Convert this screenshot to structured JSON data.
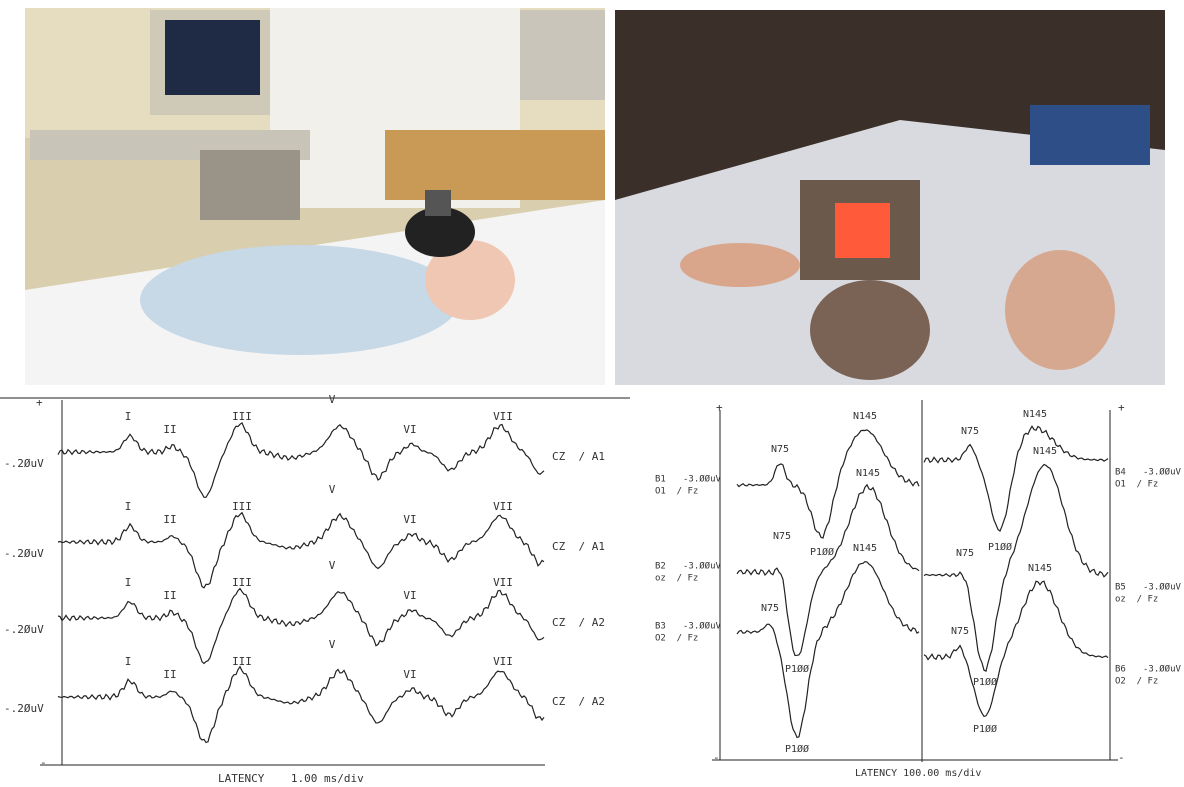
{
  "abr_plot": {
    "plus": "+",
    "minus": "-",
    "footer": "LATENCY    1.00 ms/div",
    "traces": [
      {
        "amplitude": "-.2ØuV",
        "channel": "CZ  / A1",
        "peaks": [
          "I",
          "II",
          "III",
          "V",
          "VI",
          "VII"
        ]
      },
      {
        "amplitude": "-.2ØuV",
        "channel": "CZ  / A1",
        "peaks": [
          "I",
          "II",
          "III",
          "V",
          "VI",
          "VII"
        ]
      },
      {
        "amplitude": "-.2ØuV",
        "channel": "CZ  / A2",
        "peaks": [
          "I",
          "II",
          "III",
          "V",
          "VI",
          "VII"
        ]
      },
      {
        "amplitude": "-.2ØuV",
        "channel": "CZ  / A2",
        "peaks": [
          "I",
          "II",
          "III",
          "V",
          "VI",
          "VII"
        ]
      }
    ]
  },
  "vep_plot": {
    "plus": "+",
    "minus": "-",
    "footer": "LATENCY 100.00 ms/div",
    "traces": [
      {
        "id": "B1",
        "amplitude": "-3.ØØuV",
        "channel": "O1  / Fz",
        "peaks": [
          "N75",
          "P1ØØ",
          "N145"
        ]
      },
      {
        "id": "B2",
        "amplitude": "-3.ØØuV",
        "channel": "oz  / Fz",
        "peaks": [
          "N75",
          "P1ØØ",
          "N145"
        ]
      },
      {
        "id": "B3",
        "amplitude": "-3.ØØuV",
        "channel": "O2  / Fz",
        "peaks": [
          "N75",
          "P1ØØ",
          "N145"
        ]
      },
      {
        "id": "B4",
        "amplitude": "-3.ØØuV",
        "channel": "O1  / Fz",
        "peaks": [
          "N75",
          "P1ØØ",
          "N145"
        ]
      },
      {
        "id": "B5",
        "amplitude": "-3.ØØuV",
        "channel": "oz  / Fz",
        "peaks": [
          "N75",
          "P1ØØ",
          "N145"
        ]
      },
      {
        "id": "B6",
        "amplitude": "-3.ØØuV",
        "channel": "O2  / Fz",
        "peaks": [
          "N75",
          "P1ØØ",
          "N145"
        ]
      }
    ]
  }
}
